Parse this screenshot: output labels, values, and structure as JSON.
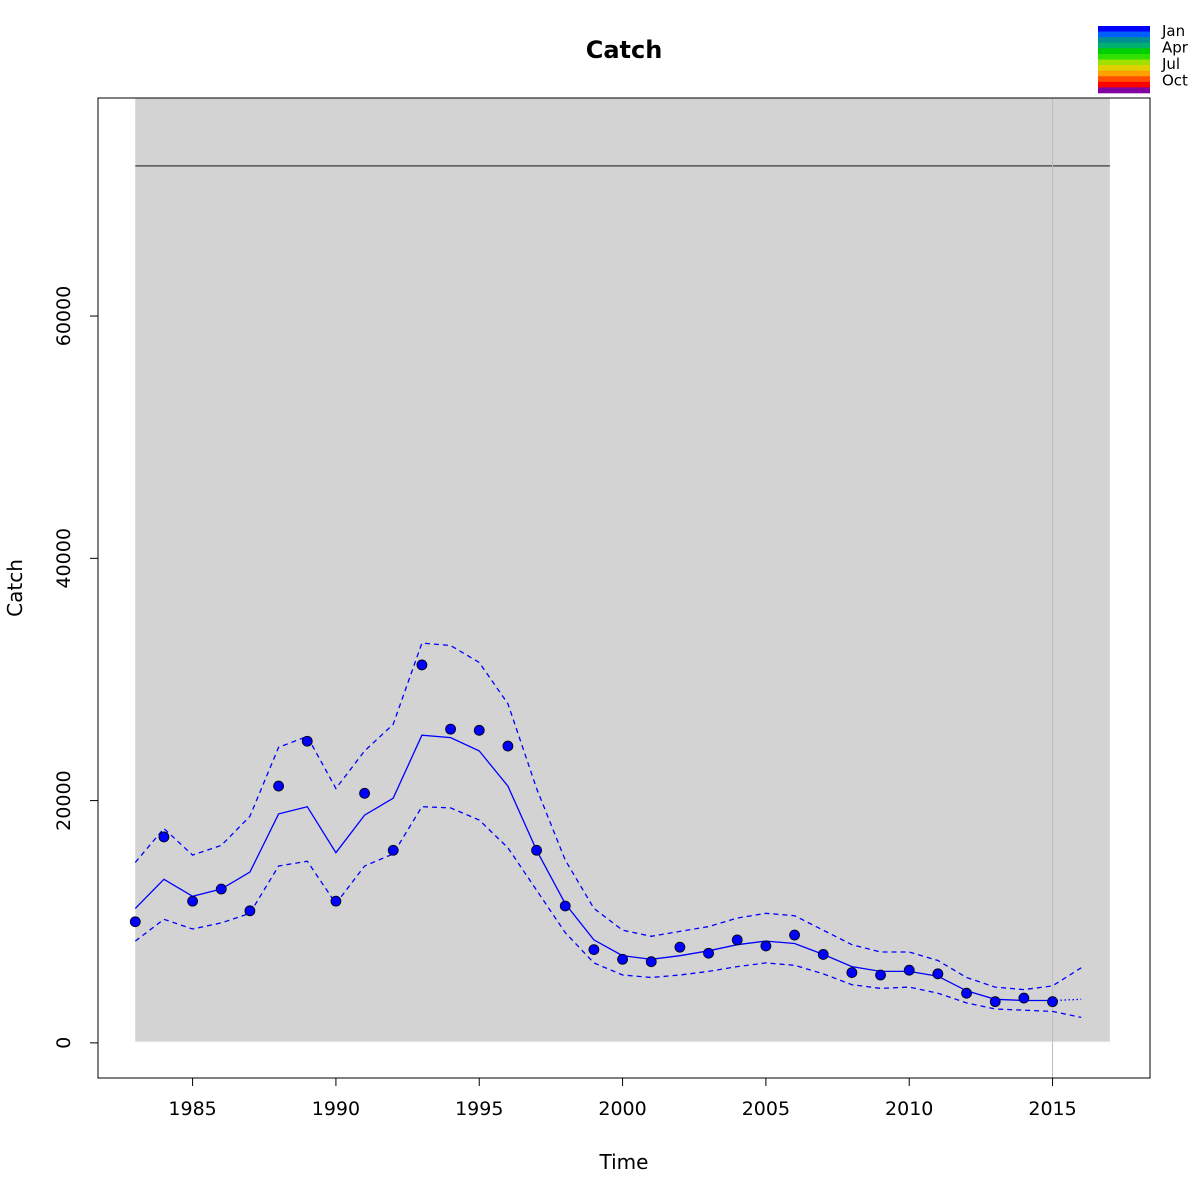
{
  "chart_data": {
    "type": "line",
    "title": "Catch",
    "xlabel": "Time",
    "ylabel": "Catch",
    "xlim": [
      1981.7,
      2018.4
    ],
    "ylim": [
      -2900,
      78000
    ],
    "x_ticks": [
      1985,
      1990,
      1995,
      2000,
      2005,
      2010,
      2015
    ],
    "y_ticks": [
      0,
      20000,
      40000,
      60000
    ],
    "shaded_region": {
      "x": [
        1983,
        2017
      ],
      "y": [
        100,
        78000
      ],
      "color": "#d3d3d3"
    },
    "reference_line_y": 72400,
    "vertical_line_x": 2015,
    "legend": {
      "position": "top-right",
      "labels": [
        "Jan",
        "Apr",
        "Jul",
        "Oct"
      ],
      "colors": [
        "#0000ff",
        "#005fff",
        "#008f8f",
        "#00b070",
        "#00d000",
        "#30e000",
        "#a0e000",
        "#e0d000",
        "#ffa000",
        "#ff5000",
        "#ff0000",
        "#8000a0"
      ]
    },
    "series": [
      {
        "role": "observed",
        "style": "points",
        "color": "#0000ff",
        "x": [
          1983,
          1984,
          1985,
          1986,
          1987,
          1988,
          1989,
          1990,
          1991,
          1992,
          1993,
          1994,
          1995,
          1996,
          1997,
          1998,
          1999,
          2000,
          2001,
          2002,
          2003,
          2004,
          2005,
          2006,
          2007,
          2008,
          2009,
          2010,
          2011,
          2012,
          2013,
          2014,
          2015
        ],
        "values": [
          10000,
          17000,
          11700,
          12700,
          10900,
          21200,
          24900,
          11700,
          20600,
          15900,
          31200,
          25900,
          25800,
          24500,
          15900,
          11300,
          7700,
          6900,
          6700,
          7900,
          7400,
          8500,
          8000,
          8900,
          7300,
          5800,
          5600,
          6000,
          5700,
          4100,
          3400,
          3700,
          3400
        ]
      },
      {
        "role": "fitted",
        "style": "solid",
        "color": "#0000ff",
        "x": [
          1983,
          1984,
          1985,
          1986,
          1987,
          1988,
          1989,
          1990,
          1991,
          1992,
          1993,
          1994,
          1995,
          1996,
          1997,
          1998,
          1999,
          2000,
          2001,
          2002,
          2003,
          2004,
          2005,
          2006,
          2007,
          2008,
          2009,
          2010,
          2011,
          2012,
          2013,
          2014,
          2015
        ],
        "values": [
          11100,
          13500,
          12100,
          12700,
          14100,
          18900,
          19500,
          15700,
          18800,
          20200,
          25400,
          25200,
          24100,
          21200,
          15900,
          11500,
          8500,
          7200,
          6900,
          7200,
          7600,
          8100,
          8400,
          8200,
          7300,
          6300,
          5900,
          5900,
          5500,
          4300,
          3600,
          3500,
          3500
        ]
      },
      {
        "role": "projection",
        "style": "dotted",
        "color": "#0000ff",
        "x": [
          2015,
          2016
        ],
        "values": [
          3500,
          3600
        ]
      },
      {
        "role": "upper",
        "style": "dashed",
        "color": "#0000ff",
        "x": [
          1983,
          1984,
          1985,
          1986,
          1987,
          1988,
          1989,
          1990,
          1991,
          1992,
          1993,
          1994,
          1995,
          1996,
          1997,
          1998,
          1999,
          2000,
          2001,
          2002,
          2003,
          2004,
          2005,
          2006,
          2007,
          2008,
          2009,
          2010,
          2011,
          2012,
          2013,
          2014,
          2015,
          2016
        ],
        "values": [
          14900,
          17700,
          15500,
          16300,
          18700,
          24400,
          25300,
          21000,
          24100,
          26300,
          33000,
          32800,
          31400,
          28000,
          21000,
          15100,
          11100,
          9300,
          8800,
          9200,
          9600,
          10300,
          10700,
          10500,
          9300,
          8100,
          7500,
          7500,
          6800,
          5400,
          4600,
          4400,
          4700,
          6200
        ]
      },
      {
        "role": "lower",
        "style": "dashed",
        "color": "#0000ff",
        "x": [
          1983,
          1984,
          1985,
          1986,
          1987,
          1988,
          1989,
          1990,
          1991,
          1992,
          1993,
          1994,
          1995,
          1996,
          1997,
          1998,
          1999,
          2000,
          2001,
          2002,
          2003,
          2004,
          2005,
          2006,
          2007,
          2008,
          2009,
          2010,
          2011,
          2012,
          2013,
          2014,
          2015,
          2016
        ],
        "values": [
          8400,
          10200,
          9400,
          9900,
          10700,
          14600,
          15000,
          11500,
          14600,
          15600,
          19500,
          19400,
          18400,
          16100,
          12600,
          9100,
          6600,
          5600,
          5400,
          5600,
          5900,
          6300,
          6600,
          6400,
          5700,
          4800,
          4500,
          4600,
          4100,
          3300,
          2800,
          2700,
          2600,
          2100
        ]
      }
    ]
  }
}
